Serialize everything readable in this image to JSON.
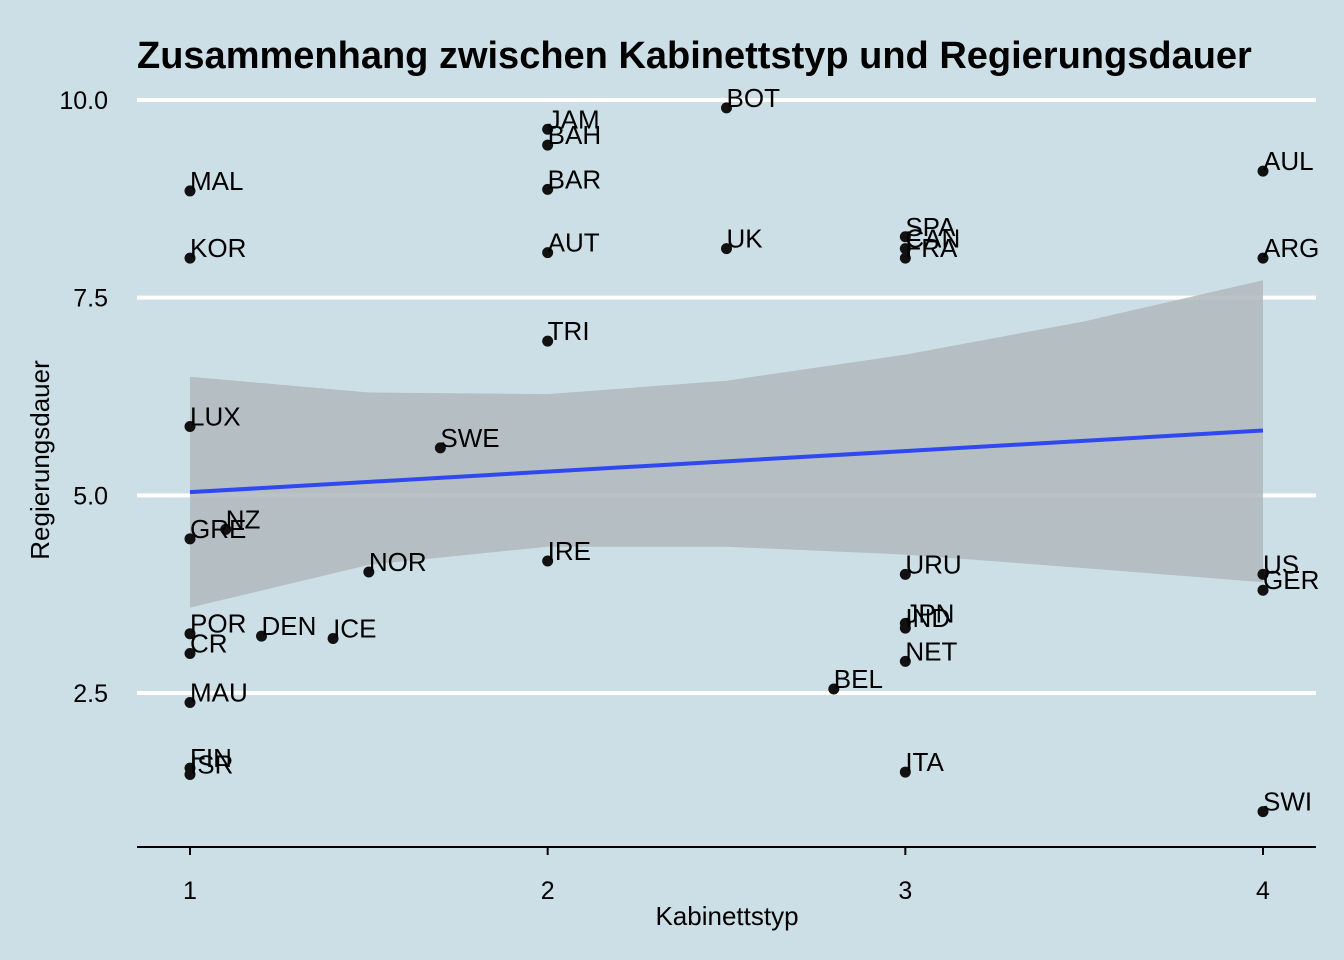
{
  "chart_data": {
    "type": "scatter",
    "title": "Zusammenhang zwischen Kabinettstyp und Regierungsdauer",
    "xlabel": "Kabinettstyp",
    "ylabel": "Regierungsdauer",
    "xlim": [
      0.85,
      4.15
    ],
    "ylim": [
      0.6,
      10.4
    ],
    "x_ticks": [
      1,
      2,
      3,
      4
    ],
    "x_tick_labels": [
      "1",
      "2",
      "3",
      "4"
    ],
    "y_ticks": [
      2.5,
      5.0,
      7.5,
      10.0
    ],
    "y_tick_labels": [
      "2.5",
      "5.0",
      "7.5",
      "10.0"
    ],
    "grid": "horizontal major lines only",
    "points": [
      {
        "label": "MAL",
        "x": 1.0,
        "y": 8.85
      },
      {
        "label": "KOR",
        "x": 1.0,
        "y": 8.0
      },
      {
        "label": "LUX",
        "x": 1.0,
        "y": 5.87
      },
      {
        "label": "GRE",
        "x": 1.0,
        "y": 4.45
      },
      {
        "label": "NZ",
        "x": 1.1,
        "y": 4.57
      },
      {
        "label": "POR",
        "x": 1.0,
        "y": 3.25
      },
      {
        "label": "CR",
        "x": 1.0,
        "y": 3.0
      },
      {
        "label": "DEN",
        "x": 1.2,
        "y": 3.22
      },
      {
        "label": "ICE",
        "x": 1.4,
        "y": 3.19
      },
      {
        "label": "NOR",
        "x": 1.5,
        "y": 4.03
      },
      {
        "label": "SWE",
        "x": 1.7,
        "y": 5.6
      },
      {
        "label": "MAU",
        "x": 1.0,
        "y": 2.38
      },
      {
        "label": "FIN",
        "x": 1.0,
        "y": 1.55
      },
      {
        "label": "ISR",
        "x": 1.0,
        "y": 1.47
      },
      {
        "label": "JAM",
        "x": 2.0,
        "y": 9.63
      },
      {
        "label": "BAH",
        "x": 2.0,
        "y": 9.43
      },
      {
        "label": "BAR",
        "x": 2.0,
        "y": 8.87
      },
      {
        "label": "AUT",
        "x": 2.0,
        "y": 8.07
      },
      {
        "label": "TRI",
        "x": 2.0,
        "y": 6.95
      },
      {
        "label": "IRE",
        "x": 2.0,
        "y": 4.17
      },
      {
        "label": "BOT",
        "x": 2.5,
        "y": 9.9
      },
      {
        "label": "UK",
        "x": 2.5,
        "y": 8.12
      },
      {
        "label": "BEL",
        "x": 2.8,
        "y": 2.55
      },
      {
        "label": "SPA",
        "x": 3.0,
        "y": 8.27
      },
      {
        "label": "CAN",
        "x": 3.0,
        "y": 8.12
      },
      {
        "label": "FRA",
        "x": 3.0,
        "y": 8.0
      },
      {
        "label": "URU",
        "x": 3.0,
        "y": 4.0
      },
      {
        "label": "JPN",
        "x": 3.0,
        "y": 3.38
      },
      {
        "label": "IND",
        "x": 3.0,
        "y": 3.32
      },
      {
        "label": "NET",
        "x": 3.0,
        "y": 2.9
      },
      {
        "label": "ITA",
        "x": 3.0,
        "y": 1.5
      },
      {
        "label": "AUL",
        "x": 4.0,
        "y": 9.1
      },
      {
        "label": "ARG",
        "x": 4.0,
        "y": 8.0
      },
      {
        "label": "US",
        "x": 4.0,
        "y": 4.0
      },
      {
        "label": "GER",
        "x": 4.0,
        "y": 3.8
      },
      {
        "label": "SWI",
        "x": 4.0,
        "y": 1.0
      }
    ],
    "regression": {
      "type": "linear",
      "color": "#3048f0",
      "x": [
        1.0,
        4.0
      ],
      "y": [
        5.04,
        5.82
      ]
    },
    "confidence_band": {
      "color": "#b0b8bc",
      "x": [
        1.0,
        1.5,
        2.0,
        2.5,
        3.0,
        3.5,
        4.0
      ],
      "lower": [
        3.58,
        4.12,
        4.35,
        4.35,
        4.25,
        4.08,
        3.9
      ],
      "upper": [
        6.5,
        6.3,
        6.28,
        6.45,
        6.78,
        7.2,
        7.72
      ]
    },
    "colors": {
      "background": "#cddfe6",
      "point": "#111111",
      "grid": "#ffffff"
    }
  }
}
